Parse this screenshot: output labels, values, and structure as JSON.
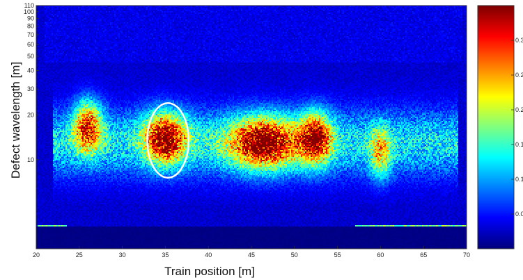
{
  "chart_data": {
    "type": "heatmap",
    "title": "",
    "xlabel": "Train position [m]",
    "ylabel": "Defect wavelength [m]",
    "x_range": [
      20,
      70
    ],
    "y_scale": "log",
    "y_range": [
      2.5,
      110
    ],
    "x_ticks": [
      "20",
      "25",
      "30",
      "35",
      "40",
      "45",
      "50",
      "55",
      "60",
      "65",
      "70"
    ],
    "y_ticks": [
      "10",
      "20",
      "30",
      "40",
      "50",
      "60",
      "70",
      "80",
      "90",
      "100",
      "110"
    ],
    "colormap": "jet",
    "colorbar_ticks": [
      "0.0",
      "0.1",
      "0.1",
      "0.2",
      "0.2",
      "0.3"
    ],
    "color_range": [
      0,
      0.35
    ],
    "high_energy_zones": [
      {
        "x_center": 26.0,
        "x_width": 1.6,
        "y_center": 17,
        "level": 0.28
      },
      {
        "x_center": 35.0,
        "x_width": 2.4,
        "y_center": 14,
        "level": 0.33
      },
      {
        "x_center": 46.5,
        "x_width": 4.0,
        "y_center": 13,
        "level": 0.34
      },
      {
        "x_center": 52.5,
        "x_width": 1.8,
        "y_center": 14,
        "level": 0.3
      },
      {
        "x_center": 60.0,
        "x_width": 1.2,
        "y_center": 11,
        "level": 0.18
      }
    ],
    "highlight_ellipse": {
      "x_center": 35.3,
      "x_radius": 2.4,
      "y_center": 13.5
    }
  }
}
